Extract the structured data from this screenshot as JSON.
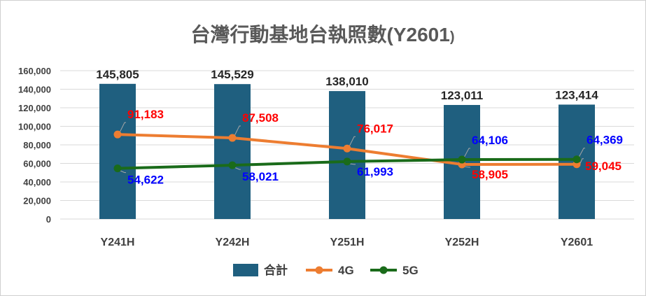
{
  "chart_data": {
    "type": "bar",
    "title": "台灣行動基地台執照數(Y2601)",
    "title_main": "台灣行動基地台執照數(Y2601",
    "title_paren": ")",
    "categories": [
      "Y241H",
      "Y242H",
      "Y251H",
      "Y252H",
      "Y2601"
    ],
    "ylim": [
      0,
      160000
    ],
    "yticks": [
      0,
      20000,
      40000,
      60000,
      80000,
      100000,
      120000,
      140000,
      160000
    ],
    "ytick_labels": [
      "0",
      "20,000",
      "40,000",
      "60,000",
      "80,000",
      "100,000",
      "120,000",
      "140,000",
      "160,000"
    ],
    "grid": true,
    "legend_position": "bottom",
    "series": [
      {
        "name": "合計",
        "kind": "bar",
        "color": "#1f5f7f",
        "values": [
          145805,
          145529,
          138010,
          123011,
          123414
        ],
        "labels": [
          "145,805",
          "145,529",
          "138,010",
          "123,011",
          "123,414"
        ]
      },
      {
        "name": "4G",
        "kind": "line",
        "color": "#ed7d31",
        "label_color": "#ff0000",
        "values": [
          91183,
          87508,
          76017,
          58905,
          59045
        ],
        "labels": [
          "91,183",
          "87,508",
          "76,017",
          "58,905",
          "59,045"
        ]
      },
      {
        "name": "5G",
        "kind": "line",
        "color": "#1a6b1a",
        "label_color": "#0000ff",
        "values": [
          54622,
          58021,
          61993,
          64106,
          64369
        ],
        "labels": [
          "54,622",
          "58,021",
          "61,993",
          "64,106",
          "64,369"
        ]
      }
    ]
  }
}
